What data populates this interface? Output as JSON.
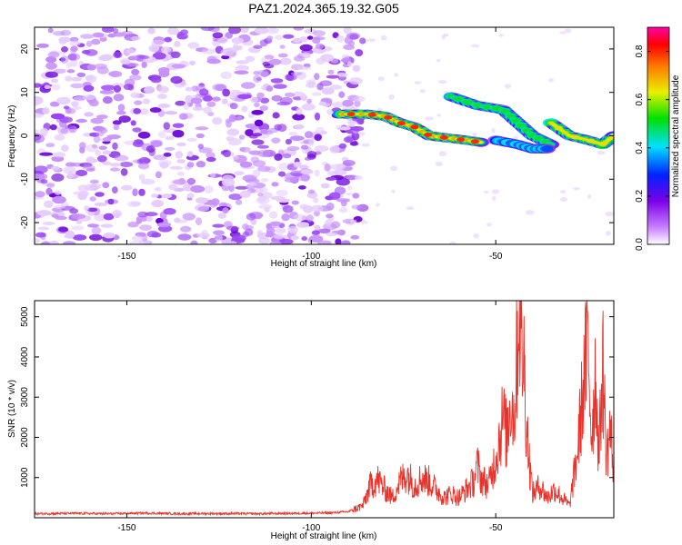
{
  "figure": {
    "title": "PAZ1.2024.365.19.32.G05"
  },
  "chart_data": [
    {
      "type": "heatmap",
      "xlabel": "Height of straight line (km)",
      "ylabel": "Frequency (Hz)",
      "xlim": [
        -175,
        -18
      ],
      "ylim": [
        -25,
        25
      ],
      "xticks": [
        -150,
        -100,
        -50
      ],
      "yticks": [
        -20,
        -10,
        0,
        10,
        20
      ],
      "colorbar": {
        "label": "Normalized spectral amplitude",
        "range": [
          0,
          0.9
        ],
        "ticks": [
          0.0,
          0.2,
          0.4,
          0.6,
          0.8
        ],
        "colormap": "rainbow (purple-blue-cyan-green-yellow-red-magenta)"
      },
      "background": "white",
      "noise_region": {
        "x_range": [
          -175,
          -90
        ],
        "amplitude_approx": 0.05
      },
      "ridges": [
        {
          "x": [
            -92,
            -85,
            -80,
            -76,
            -72,
            -68,
            -63,
            -58,
            -54
          ],
          "frequency": [
            5,
            5,
            4.5,
            3,
            2,
            0,
            -0.5,
            -1,
            -1.5
          ],
          "peak_amplitude": 0.8
        },
        {
          "x": [
            -62,
            -55,
            -48,
            -44,
            -40,
            -35
          ],
          "frequency": [
            9,
            7,
            6,
            3,
            0,
            -2
          ],
          "peak_amplitude": 0.5
        },
        {
          "x": [
            -50,
            -44,
            -40,
            -36
          ],
          "frequency": [
            -1,
            -2,
            -3,
            -3
          ],
          "peak_amplitude": 0.4
        },
        {
          "x": [
            -35,
            -30,
            -25,
            -21,
            -18
          ],
          "frequency": [
            3,
            0,
            -1,
            -2,
            0
          ],
          "peak_amplitude": 0.65
        }
      ]
    },
    {
      "type": "line",
      "xlabel": "Height of straight line (km)",
      "ylabel": "SNR (10 * v/v)",
      "xlim": [
        -175,
        -18
      ],
      "ylim": [
        0,
        5400
      ],
      "xticks": [
        -150,
        -100,
        -50
      ],
      "yticks": [
        1000,
        2000,
        3000,
        4000,
        5000
      ],
      "series": [
        {
          "color": "#e8322a",
          "x": [
            -175,
            -165,
            -155,
            -145,
            -135,
            -125,
            -115,
            -105,
            -95,
            -90,
            -86,
            -84,
            -82,
            -80,
            -78,
            -76,
            -74,
            -72,
            -70,
            -68,
            -66,
            -64,
            -62,
            -60,
            -58,
            -56,
            -55,
            -54,
            -52,
            -50,
            -48,
            -47,
            -46,
            -45,
            -44,
            -43.5,
            -43,
            -42.5,
            -42,
            -41,
            -40,
            -38,
            -36,
            -34,
            -32,
            -30,
            -28,
            -26,
            -25,
            -24,
            -23,
            -22,
            -21,
            -20,
            -19,
            -18
          ],
          "values": [
            100,
            110,
            100,
            115,
            100,
            105,
            100,
            110,
            120,
            150,
            300,
            800,
            950,
            700,
            500,
            900,
            1100,
            800,
            1000,
            900,
            700,
            500,
            600,
            500,
            700,
            900,
            1300,
            1000,
            800,
            1500,
            2500,
            2000,
            3000,
            2500,
            4700,
            5400,
            4000,
            4300,
            3000,
            1500,
            600,
            800,
            500,
            700,
            500,
            300,
            1500,
            3500,
            4300,
            2000,
            3600,
            1500,
            3900,
            1500,
            2200,
            1200
          ]
        }
      ]
    }
  ]
}
